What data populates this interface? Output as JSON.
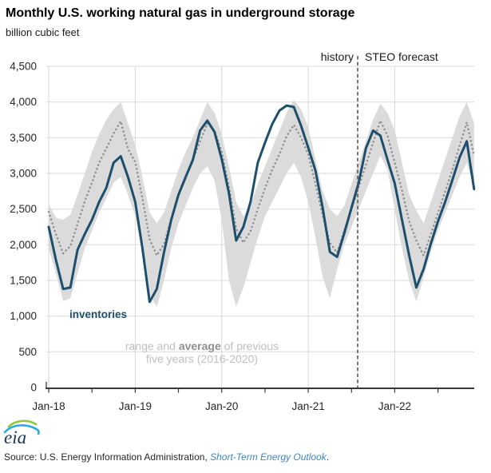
{
  "header": {
    "title": "Monthly U.S. working natural gas in underground storage",
    "subtitle": "billion cubic feet"
  },
  "annotations": {
    "history": "history",
    "forecast": "STEO forecast",
    "inventories": "inventories"
  },
  "band_label": {
    "pre": "range and ",
    "bold": "average",
    "post": " of previous",
    "line2": "five years (2016-2020)"
  },
  "footer": {
    "logo_text": "eia",
    "source_prefix": "Source: U.S. Energy Information Administration, ",
    "source_link": "Short-Term Energy Outlook",
    "source_suffix": "."
  },
  "colors": {
    "line_blue": "#1d4f6c",
    "average_gray": "#8f8f8f",
    "band_gray": "#dbdbdb",
    "grid_gray": "#d9d9d9",
    "axis_dark": "#383838",
    "divider_gray": "#595959",
    "tick_text": "#262626",
    "link_blue": "#3d85c6",
    "label_light_gray": "#bfbfbf",
    "label_mid_gray": "#8f8f8f",
    "logo_navy": "#1a3455",
    "logo_green": "#8dc63f",
    "logo_cyan": "#29abe2"
  },
  "chart_data": {
    "type": "line",
    "title": "Monthly U.S. working natural gas in underground storage",
    "ylabel": "billion cubic feet",
    "ylim": [
      0,
      4500
    ],
    "y_ticks": [
      0,
      500,
      1000,
      1500,
      2000,
      2500,
      3000,
      3500,
      4000,
      4500
    ],
    "grid": true,
    "legend_position": "annotations-inline",
    "x": [
      "Jan-18",
      "Feb-18",
      "Mar-18",
      "Apr-18",
      "May-18",
      "Jun-18",
      "Jul-18",
      "Aug-18",
      "Sep-18",
      "Oct-18",
      "Nov-18",
      "Dec-18",
      "Jan-19",
      "Feb-19",
      "Mar-19",
      "Apr-19",
      "May-19",
      "Jun-19",
      "Jul-19",
      "Aug-19",
      "Sep-19",
      "Oct-19",
      "Nov-19",
      "Dec-19",
      "Jan-20",
      "Feb-20",
      "Mar-20",
      "Apr-20",
      "May-20",
      "Jun-20",
      "Jul-20",
      "Aug-20",
      "Sep-20",
      "Oct-20",
      "Nov-20",
      "Dec-20",
      "Jan-21",
      "Feb-21",
      "Mar-21",
      "Apr-21",
      "May-21",
      "Jun-21",
      "Jul-21",
      "Aug-21",
      "Sep-21",
      "Oct-21",
      "Nov-21",
      "Dec-21",
      "Jan-22",
      "Feb-22",
      "Mar-22",
      "Apr-22",
      "May-22",
      "Jun-22",
      "Jul-22",
      "Aug-22",
      "Sep-22",
      "Oct-22",
      "Nov-22",
      "Dec-22"
    ],
    "x_year_ticks": [
      {
        "label": "Jan-18",
        "index": 0
      },
      {
        "label": "Jan-19",
        "index": 12
      },
      {
        "label": "Jan-20",
        "index": 24
      },
      {
        "label": "Jan-21",
        "index": 36
      },
      {
        "label": "Jan-22",
        "index": 48
      }
    ],
    "minor_tick_every": 6,
    "history_end_label": "Aug-21",
    "forecast_start_label": "Sep-21",
    "forecast_start_index": 44,
    "series": [
      {
        "name": "inventories",
        "style": "solid",
        "color": "#1d4f6c",
        "values": [
          2250,
          1790,
          1380,
          1400,
          1930,
          2150,
          2350,
          2600,
          2800,
          3150,
          3240,
          2950,
          2600,
          1950,
          1200,
          1380,
          1900,
          2350,
          2700,
          2950,
          3190,
          3600,
          3740,
          3580,
          3200,
          2720,
          2060,
          2250,
          2600,
          3150,
          3430,
          3690,
          3880,
          3950,
          3930,
          3670,
          3360,
          3040,
          2520,
          1900,
          1830,
          2160,
          2520,
          2870,
          3350,
          3600,
          3530,
          3190,
          2860,
          2350,
          1850,
          1400,
          1660,
          2015,
          2330,
          2600,
          2910,
          3225,
          3450,
          2780
        ]
      },
      {
        "name": "average of previous five years (2016-2020)",
        "style": "dotted",
        "color": "#8f8f8f",
        "values": [
          2460,
          2150,
          1880,
          1980,
          2290,
          2610,
          2870,
          3150,
          3350,
          3560,
          3730,
          3340,
          3160,
          2650,
          2080,
          1850,
          2010,
          2370,
          2680,
          2950,
          3190,
          3450,
          3700,
          3600,
          3300,
          2810,
          2230,
          2030,
          2190,
          2500,
          2790,
          3050,
          3270,
          3520,
          3680,
          3505,
          3265,
          2855,
          2410,
          2030,
          1890,
          2200,
          2500,
          2810,
          3120,
          3430,
          3740,
          3530,
          3150,
          2765,
          2330,
          2060,
          1850,
          2150,
          2445,
          2745,
          3055,
          3390,
          3716,
          3250
        ]
      },
      {
        "name": "range of previous five years - low",
        "style": "band-lower",
        "color": "#dbdbdb",
        "values": [
          1950,
          1600,
          1210,
          1250,
          1600,
          1950,
          2200,
          2450,
          2650,
          2870,
          2950,
          2700,
          2400,
          1900,
          1300,
          1130,
          1500,
          1950,
          2300,
          2550,
          2800,
          3000,
          3100,
          2900,
          2350,
          1500,
          1130,
          1400,
          1750,
          2100,
          2400,
          2600,
          2800,
          3000,
          3150,
          2950,
          2600,
          2100,
          1550,
          1250,
          1650,
          2000,
          2250,
          2500,
          2750,
          3000,
          3250,
          3050,
          2500,
          1950,
          1500,
          1200,
          1550,
          1900,
          2200,
          2450,
          2700,
          2950,
          3150,
          2800
        ]
      },
      {
        "name": "range of previous five years - high",
        "style": "band-upper",
        "color": "#dbdbdb",
        "values": [
          2570,
          2380,
          2350,
          2420,
          2700,
          3000,
          3300,
          3550,
          3750,
          3900,
          4000,
          3700,
          3400,
          2950,
          2450,
          2300,
          2450,
          2750,
          3050,
          3300,
          3500,
          3750,
          4000,
          3850,
          3550,
          3100,
          2600,
          2400,
          2550,
          2850,
          3100,
          3350,
          3600,
          3850,
          4030,
          3900,
          3650,
          3200,
          2750,
          2500,
          2400,
          2550,
          2850,
          3150,
          3450,
          3750,
          3980,
          3850,
          3600,
          3150,
          2700,
          2480,
          2300,
          2600,
          2900,
          3200,
          3500,
          3800,
          4000,
          3700
        ]
      }
    ]
  }
}
